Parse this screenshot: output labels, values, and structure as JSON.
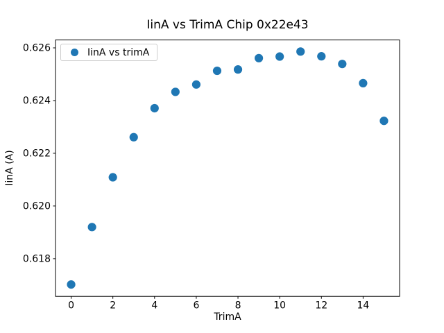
{
  "chart_data": {
    "type": "scatter",
    "title": "IinA vs TrimA Chip 0x22e43",
    "xlabel": "TrimA",
    "ylabel": "IinA (A)",
    "legend": {
      "label": "IinA vs trimA",
      "position": "upper left"
    },
    "x": [
      0,
      1,
      2,
      3,
      4,
      5,
      6,
      7,
      8,
      9,
      10,
      11,
      12,
      13,
      14,
      15
    ],
    "y": [
      0.61702,
      0.6192,
      0.62109,
      0.62261,
      0.62371,
      0.62433,
      0.62461,
      0.62513,
      0.62518,
      0.62561,
      0.62567,
      0.62586,
      0.62568,
      0.62539,
      0.62466,
      0.62323
    ],
    "xlim": [
      -0.75,
      15.75
    ],
    "ylim": [
      0.61657,
      0.6263
    ],
    "xticks": [
      0,
      2,
      4,
      6,
      8,
      10,
      12,
      14
    ],
    "xtick_labels": [
      "0",
      "2",
      "4",
      "6",
      "8",
      "10",
      "12",
      "14"
    ],
    "yticks": [
      0.618,
      0.62,
      0.622,
      0.624,
      0.626
    ],
    "ytick_labels": [
      "0.618",
      "0.620",
      "0.622",
      "0.624",
      "0.626"
    ],
    "grid": false,
    "marker_color": "#1f77b4",
    "spine_color": "#000000",
    "tick_label_color": "#000000"
  }
}
